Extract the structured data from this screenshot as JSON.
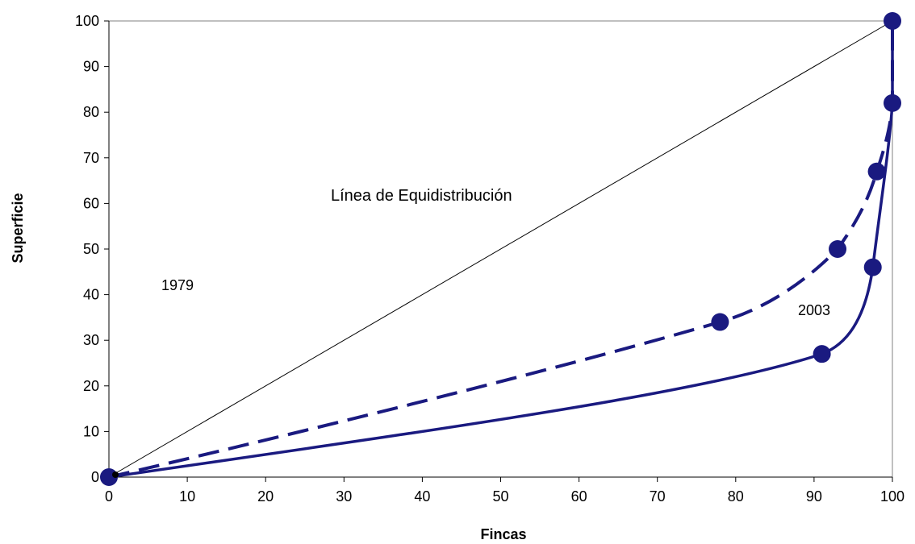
{
  "chart_data": {
    "type": "line",
    "title": "",
    "xlabel": "Fincas",
    "ylabel": "Superficie",
    "xlim": [
      0,
      100
    ],
    "ylim": [
      0,
      100
    ],
    "xticks": [
      0,
      10,
      20,
      30,
      40,
      50,
      60,
      70,
      80,
      90,
      100
    ],
    "yticks": [
      0,
      10,
      20,
      30,
      40,
      50,
      60,
      70,
      80,
      90,
      100
    ],
    "grid": false,
    "colors": {
      "series": "#1a1a80",
      "equidistribution": "#000000",
      "plot_border": "#808080"
    },
    "annotations": {
      "equidistribution": "Línea de Equidistribución",
      "label_1979": "1979",
      "label_2003": "2003"
    },
    "series": [
      {
        "style": "dashed",
        "x": [
          0,
          78,
          93,
          98,
          100,
          100
        ],
        "y": [
          0,
          34,
          50,
          67,
          82,
          100
        ]
      },
      {
        "style": "solid",
        "x": [
          0,
          91,
          97.5,
          100,
          100
        ],
        "y": [
          0,
          27,
          46,
          82,
          100
        ]
      },
      {
        "style": "thin",
        "x": [
          0,
          100
        ],
        "y": [
          0,
          100
        ]
      }
    ]
  }
}
